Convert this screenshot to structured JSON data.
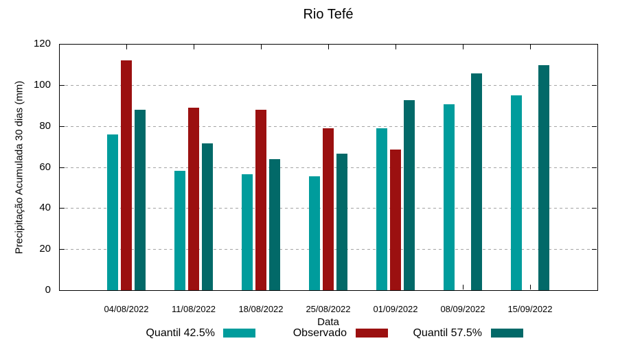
{
  "title": "Rio Tefé",
  "chart_data": {
    "type": "bar",
    "title": "Rio Tefé",
    "xlabel": "Data",
    "ylabel": "Precipitação Acumulada 30 dias (mm)",
    "categories": [
      "04/08/2022",
      "11/08/2022",
      "18/08/2022",
      "25/08/2022",
      "01/09/2022",
      "08/09/2022",
      "15/09/2022"
    ],
    "series": [
      {
        "name": "Quantil 42.5%",
        "color": "#009c9c",
        "values": [
          76,
          58,
          56.5,
          55.5,
          79,
          90.5,
          95
        ]
      },
      {
        "name": "Observado",
        "color": "#9b1010",
        "values": [
          112,
          89,
          88,
          79,
          68.5,
          null,
          null
        ]
      },
      {
        "name": "Quantil 57.5%",
        "color": "#026968",
        "values": [
          88,
          71.5,
          64,
          66.5,
          92.5,
          105.5,
          109.5
        ]
      }
    ],
    "ylim": [
      0,
      120
    ],
    "yticks": [
      0,
      20,
      40,
      60,
      80,
      100,
      120
    ],
    "grid": true,
    "legend_position": "bottom"
  }
}
